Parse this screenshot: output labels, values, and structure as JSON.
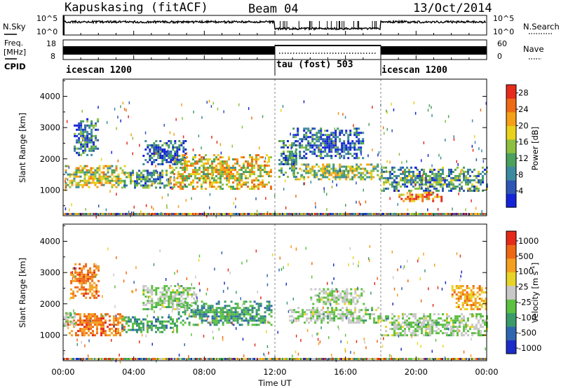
{
  "header": {
    "station": "Kapuskasing (fitACF)",
    "beam": "Beam 04",
    "date": "13/Oct/2014"
  },
  "top_panels": {
    "nsky_label": "N.Sky",
    "nsky_ticks": [
      "10^5",
      "10^0"
    ],
    "nsearch_label": "N.Search",
    "nsearch_ticks": [
      "10^5",
      "10^0"
    ],
    "freq_label_1": "Freq.",
    "freq_label_2": "[MHz]",
    "freq_ticks": [
      "18",
      "8"
    ],
    "nave_label": "Nave",
    "nave_ticks": [
      "60",
      "0"
    ],
    "cpid_label": "CPID",
    "cpid_segments": [
      {
        "name": "icescan 1200",
        "start_hour": 0,
        "end_hour": 12
      },
      {
        "name": "tau (fost) 503",
        "start_hour": 12,
        "end_hour": 18
      },
      {
        "name": "icescan 1200",
        "start_hour": 18,
        "end_hour": 24
      }
    ]
  },
  "colors": {
    "power_scale": [
      "#1424d8",
      "#2e56b4",
      "#3c8aa0",
      "#4aa05c",
      "#8ec040",
      "#e8d21c",
      "#f4a018",
      "#ee6a14",
      "#e62c1c"
    ],
    "velocity_scale": [
      "#1c2cc8",
      "#2f66b0",
      "#3a9a6a",
      "#5cc040",
      "#c8c8c8",
      "#e8d428",
      "#f4a020",
      "#ee6814",
      "#e52a1a"
    ]
  },
  "chart_data": [
    {
      "type": "heatmap",
      "name": "power",
      "xlabel": "",
      "ylabel": "Slant Range [km]",
      "xlim": [
        0,
        24
      ],
      "ylim": [
        180,
        4550
      ],
      "yticks": [
        1000,
        2000,
        3000,
        4000
      ],
      "colorbar": {
        "label": "Power [dB]",
        "ticks": [
          4,
          8,
          12,
          16,
          20,
          24,
          28
        ],
        "range": [
          0,
          30
        ]
      },
      "regions": [
        {
          "x": [
            0.1,
            3.5
          ],
          "y": [
            1100,
            1800
          ],
          "level": 0.55
        },
        {
          "x": [
            0.6,
            2.0
          ],
          "y": [
            2100,
            3300
          ],
          "level": 0.25
        },
        {
          "x": [
            3.3,
            6.2
          ],
          "y": [
            1100,
            1650
          ],
          "level": 0.35
        },
        {
          "x": [
            4.5,
            7.0
          ],
          "y": [
            1800,
            2600
          ],
          "level": 0.2
        },
        {
          "x": [
            6.0,
            11.8
          ],
          "y": [
            1050,
            2150
          ],
          "level": 0.6
        },
        {
          "x": [
            12.2,
            13.2
          ],
          "y": [
            1400,
            2600
          ],
          "level": 0.3
        },
        {
          "x": [
            13.0,
            18.0
          ],
          "y": [
            1350,
            1850
          ],
          "level": 0.5
        },
        {
          "x": [
            13.0,
            17.0
          ],
          "y": [
            2000,
            3000
          ],
          "level": 0.2
        },
        {
          "x": [
            18.0,
            24.0
          ],
          "y": [
            950,
            1750
          ],
          "level": 0.35
        },
        {
          "x": [
            19.0,
            21.5
          ],
          "y": [
            650,
            950
          ],
          "level": 0.8
        }
      ]
    },
    {
      "type": "heatmap",
      "name": "velocity",
      "xlabel": "Time UT",
      "ylabel": "Slant Range [km]",
      "xlim": [
        0,
        24
      ],
      "ylim": [
        180,
        4550
      ],
      "xticks": [
        "00:00",
        "04:00",
        "08:00",
        "12:00",
        "16:00",
        "20:00",
        "00:00"
      ],
      "yticks": [
        1000,
        2000,
        3000,
        4000
      ],
      "colorbar": {
        "label": "Velocity [m s-1]",
        "ticks": [
          1000,
          500,
          100,
          25,
          -25,
          -100,
          -500,
          -1000
        ]
      },
      "regions": [
        {
          "x": [
            0.2,
            3.5
          ],
          "y": [
            1000,
            1700
          ],
          "level": 0.8
        },
        {
          "x": [
            0.4,
            2.0
          ],
          "y": [
            2200,
            3300
          ],
          "level": 0.8
        },
        {
          "x": [
            0.0,
            0.7
          ],
          "y": [
            1300,
            1800
          ],
          "level": 0.45
        },
        {
          "x": [
            3.3,
            6.5
          ],
          "y": [
            1100,
            1600
          ],
          "level": 0.3
        },
        {
          "x": [
            6.5,
            11.8
          ],
          "y": [
            1300,
            2100
          ],
          "level": 0.3
        },
        {
          "x": [
            4.5,
            7.5
          ],
          "y": [
            1800,
            2600
          ],
          "level": 0.45
        },
        {
          "x": [
            12.8,
            18.0
          ],
          "y": [
            1400,
            1900
          ],
          "level": 0.45
        },
        {
          "x": [
            14.0,
            17.0
          ],
          "y": [
            2000,
            2500
          ],
          "level": 0.45
        },
        {
          "x": [
            18.0,
            24.0
          ],
          "y": [
            1000,
            1700
          ],
          "level": 0.45
        },
        {
          "x": [
            22.0,
            24.0
          ],
          "y": [
            1800,
            2600
          ],
          "level": 0.7
        }
      ]
    }
  ],
  "ylabels": {
    "power": "Slant Range [km]",
    "velocity": "Slant Range [km]"
  },
  "power_bar_label": "Power [dB]",
  "velocity_bar_label": "Velocity [m s",
  "velocity_bar_sup": "-1",
  "velocity_bar_end": "]",
  "xlabel": "Time UT"
}
